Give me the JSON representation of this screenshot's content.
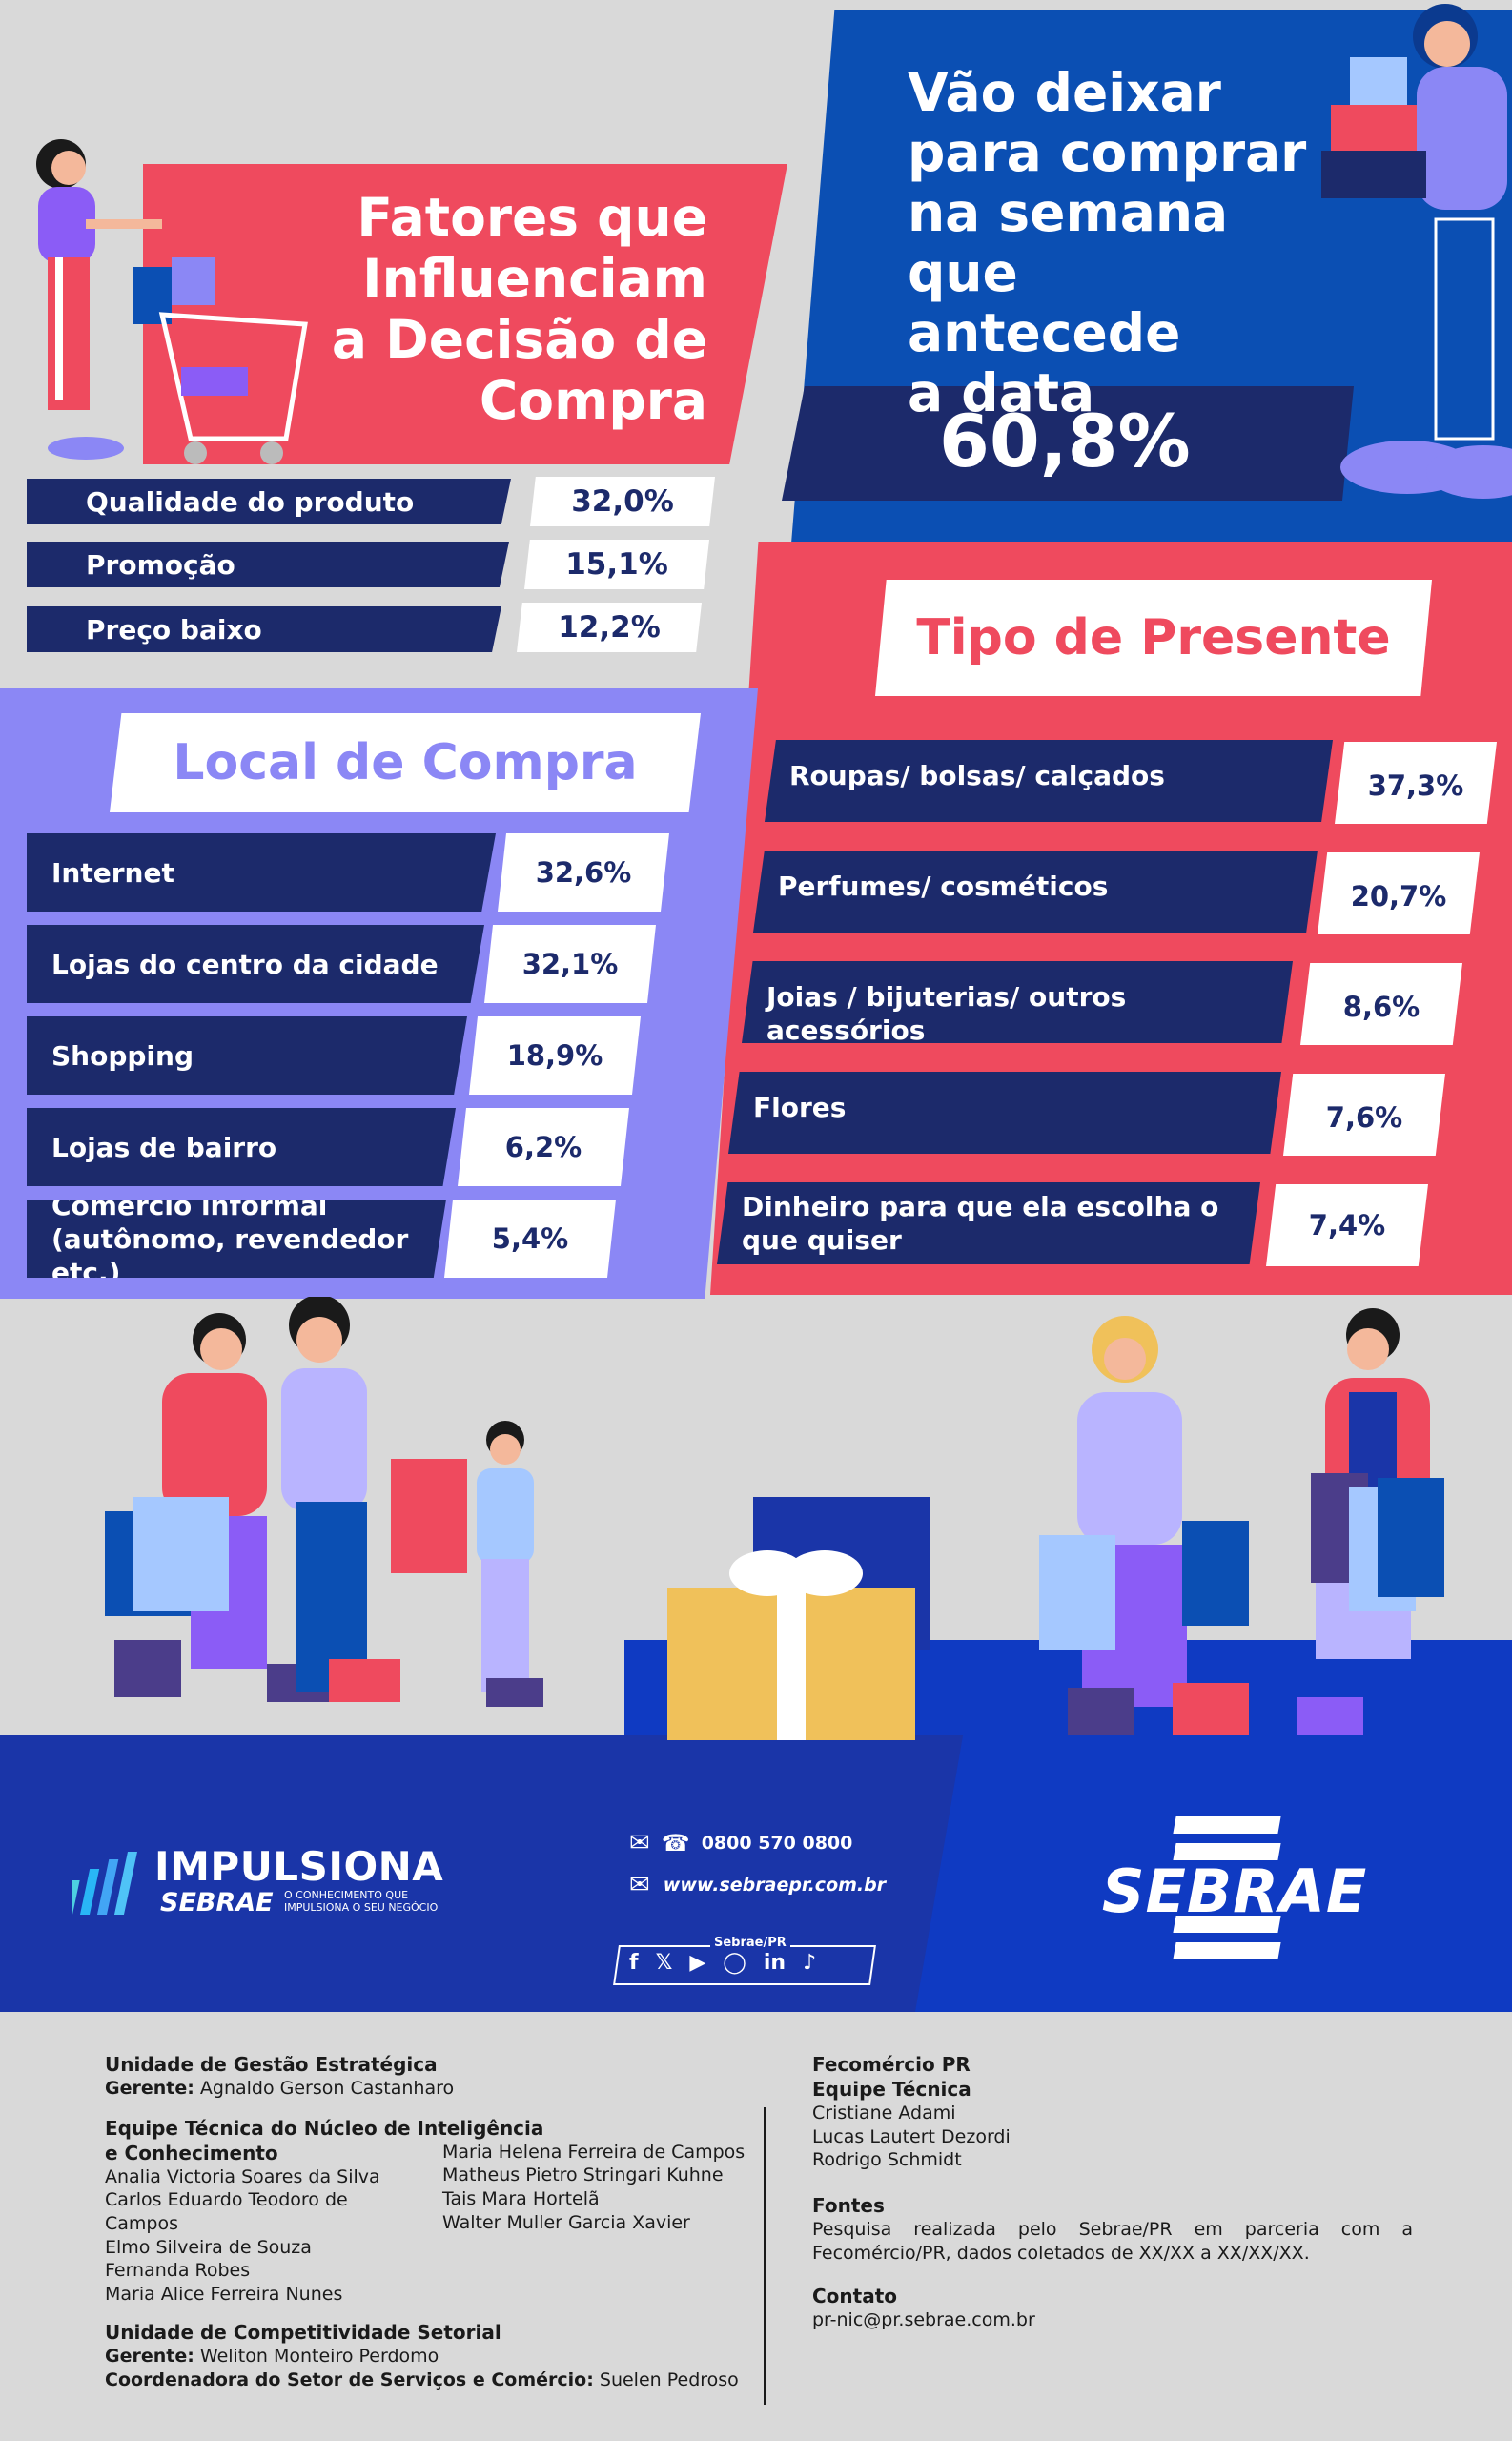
{
  "factors": {
    "title": [
      "Fatores que",
      "Influenciam",
      "a Decisão de",
      "Compra"
    ],
    "rows": [
      {
        "label": "Qualidade do produto",
        "value": "32,0%"
      },
      {
        "label": "Promoção",
        "value": "15,1%"
      },
      {
        "label": "Preço baixo",
        "value": "12,2%"
      }
    ]
  },
  "last_week": {
    "title": [
      "Vão deixar",
      "para comprar",
      "na semana",
      "que antecede",
      "a data"
    ],
    "value": "60,8%"
  },
  "local": {
    "title": "Local de Compra",
    "rows": [
      {
        "label": "Internet",
        "value": "32,6%"
      },
      {
        "label": "Lojas do centro da cidade",
        "value": "32,1%"
      },
      {
        "label": "Shopping",
        "value": "18,9%"
      },
      {
        "label": "Lojas de bairro",
        "value": "6,2%"
      },
      {
        "label": "Comércio informal (autônomo, revendedor etc.)",
        "value": "5,4%"
      }
    ]
  },
  "gift": {
    "title": "Tipo de Presente",
    "rows": [
      {
        "label": "Roupas/ bolsas/ calçados",
        "value": "37,3%"
      },
      {
        "label": "Perfumes/ cosméticos",
        "value": "20,7%"
      },
      {
        "label": "Joias / bijuterias/ outros acessórios",
        "value": "8,6%"
      },
      {
        "label": "Flores",
        "value": "7,6%"
      },
      {
        "label": "Dinheiro para que ela escolha o que quiser",
        "value": "7,4%"
      }
    ]
  },
  "brand": {
    "impulsiona": "IMPULSIONA",
    "sebrae_small": "SEBRAE",
    "tagline": "O CONHECIMENTO QUE IMPULSIONA O SEU NEGÓCIO",
    "phone": "0800 570 0800",
    "site": "www.sebraepr.com.br",
    "social_label": "Sebrae/PR",
    "sebrae_logo": "SEBRAE"
  },
  "credits": {
    "u1_title": "Unidade de Gestão Estratégica",
    "u1_gerente_label": "Gerente:",
    "u1_gerente": "Agnaldo Gerson Castanharo",
    "team_title": "Equipe Técnica do Núcleo de Inteligência e Conhecimento",
    "team_col1": [
      "Analia Victoria Soares da Silva",
      "Carlos Eduardo Teodoro de Campos",
      "Elmo Silveira de Souza",
      "Fernanda Robes",
      "Maria Alice Ferreira Nunes"
    ],
    "team_col2": [
      "Maria Helena Ferreira de Campos",
      "Matheus Pietro Stringari Kuhne",
      "Tais Mara Hortelã",
      "Walter Muller Garcia Xavier"
    ],
    "u2_title": "Unidade de Competitividade Setorial",
    "u2_gerente_label": "Gerente:",
    "u2_gerente": "Weliton Monteiro Perdomo",
    "u2_coord_label": "Coordenadora do Setor de Serviços e Comércio:",
    "u2_coord": "Suelen Pedroso",
    "fecom_title": "Fecomércio PR",
    "fecom_team_title": "Equipe Técnica",
    "fecom_team": [
      "Cristiane Adami",
      "Lucas Lautert Dezordi",
      "Rodrigo Schmidt"
    ],
    "fontes_title": "Fontes",
    "fontes_text": "Pesquisa realizada pelo Sebrae/PR em parceria com a Fecomércio/PR, dados coletados de XX/XX a XX/XX/XX.",
    "contato_title": "Contato",
    "contato_email": "pr-nic@pr.sebrae.com.br"
  },
  "colors": {
    "navy": "#1c2a6b",
    "pink": "#ef4a5e",
    "blue": "#0b4fb3",
    "violet": "#8b87f5",
    "royal": "#0f3ac2"
  }
}
